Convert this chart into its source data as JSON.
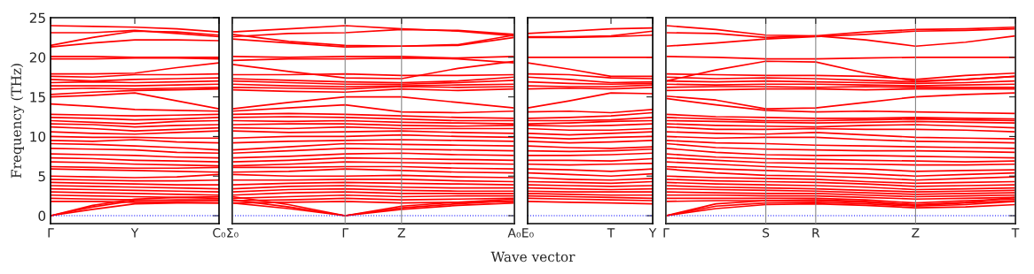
{
  "chart_data": [
    {
      "type": "line",
      "ylabel": "Frequency (THz)",
      "categories": [
        "Γ",
        null,
        "Y",
        null,
        "C₀"
      ],
      "ylim": [
        -1,
        25
      ],
      "yticks": [
        0,
        5,
        10,
        15,
        20,
        25
      ],
      "line_style": "solid",
      "ref_lines": [
        {
          "axis": "y",
          "value": 0,
          "color": "#0000ff",
          "line_style": "dotted"
        }
      ],
      "series": [
        {
          "color": "#ff0000",
          "values": [
            24.0,
            23.9,
            23.8,
            23.6,
            23.2
          ]
        },
        {
          "color": "#ff0000",
          "values": [
            23.1,
            23.1,
            23.4,
            23.0,
            22.6
          ]
        },
        {
          "color": "#ff0000",
          "values": [
            21.5,
            22.5,
            23.3,
            23.2,
            22.8
          ]
        },
        {
          "color": "#ff0000",
          "values": [
            21.3,
            21.8,
            22.2,
            22.2,
            22.1
          ]
        },
        {
          "color": "#ff0000",
          "values": [
            20.1,
            20.1,
            20.0,
            20.0,
            20.0
          ]
        },
        {
          "color": "#ff0000",
          "values": [
            19.8,
            19.8,
            19.9,
            19.9,
            19.8
          ]
        },
        {
          "color": "#ff0000",
          "values": [
            17.9,
            17.9,
            18.0,
            18.7,
            19.3
          ]
        },
        {
          "color": "#ff0000",
          "values": [
            17.6,
            17.5,
            17.8,
            17.8,
            17.9
          ]
        },
        {
          "color": "#ff0000",
          "values": [
            17.2,
            17.0,
            17.2,
            17.3,
            17.4
          ]
        },
        {
          "color": "#ff0000",
          "values": [
            16.8,
            16.9,
            16.8,
            16.9,
            17.0
          ]
        },
        {
          "color": "#ff0000",
          "values": [
            16.4,
            16.4,
            16.4,
            16.5,
            16.6
          ]
        },
        {
          "color": "#ff0000",
          "values": [
            16.0,
            16.1,
            16.0,
            16.1,
            16.2
          ]
        },
        {
          "color": "#ff0000",
          "values": [
            15.3,
            15.6,
            15.8,
            15.9,
            16.0
          ]
        },
        {
          "color": "#ff0000",
          "values": [
            15.0,
            15.2,
            15.5,
            14.5,
            13.5
          ]
        },
        {
          "color": "#ff0000",
          "values": [
            14.1,
            13.8,
            13.4,
            13.3,
            13.2
          ]
        },
        {
          "color": "#ff0000",
          "values": [
            12.8,
            12.7,
            12.6,
            12.7,
            12.8
          ]
        },
        {
          "color": "#ff0000",
          "values": [
            12.4,
            12.3,
            12.1,
            12.2,
            12.4
          ]
        },
        {
          "color": "#ff0000",
          "values": [
            12.0,
            11.8,
            11.6,
            11.9,
            12.0
          ]
        },
        {
          "color": "#ff0000",
          "values": [
            11.6,
            11.5,
            11.2,
            11.4,
            11.5
          ]
        },
        {
          "color": "#ff0000",
          "values": [
            11.2,
            11.0,
            10.7,
            10.9,
            11.1
          ]
        },
        {
          "color": "#ff0000",
          "values": [
            10.6,
            10.4,
            10.3,
            10.5,
            10.7
          ]
        },
        {
          "color": "#ff0000",
          "values": [
            10.0,
            9.9,
            9.9,
            9.8,
            9.8
          ]
        },
        {
          "color": "#ff0000",
          "values": [
            9.5,
            9.4,
            9.6,
            9.3,
            9.2
          ]
        },
        {
          "color": "#ff0000",
          "values": [
            9.1,
            9.0,
            8.8,
            8.6,
            8.3
          ]
        },
        {
          "color": "#ff0000",
          "values": [
            8.5,
            8.4,
            8.3,
            8.0,
            7.9
          ]
        },
        {
          "color": "#ff0000",
          "values": [
            7.8,
            7.7,
            7.6,
            7.4,
            7.3
          ]
        },
        {
          "color": "#ff0000",
          "values": [
            7.3,
            7.2,
            7.0,
            6.9,
            6.8
          ]
        },
        {
          "color": "#ff0000",
          "values": [
            6.8,
            6.7,
            6.5,
            6.4,
            6.3
          ]
        },
        {
          "color": "#ff0000",
          "values": [
            6.2,
            6.1,
            6.0,
            6.0,
            6.1
          ]
        },
        {
          "color": "#ff0000",
          "values": [
            5.9,
            5.8,
            5.7,
            5.6,
            5.5
          ]
        },
        {
          "color": "#ff0000",
          "values": [
            5.0,
            4.9,
            4.8,
            4.9,
            5.2
          ]
        },
        {
          "color": "#ff0000",
          "values": [
            4.6,
            4.5,
            4.4,
            4.4,
            4.5
          ]
        },
        {
          "color": "#ff0000",
          "values": [
            4.2,
            4.1,
            4.0,
            3.9,
            3.9
          ]
        },
        {
          "color": "#ff0000",
          "values": [
            3.8,
            3.7,
            3.6,
            3.5,
            3.4
          ]
        },
        {
          "color": "#ff0000",
          "values": [
            3.4,
            3.3,
            3.2,
            3.1,
            3.0
          ]
        },
        {
          "color": "#ff0000",
          "values": [
            3.0,
            2.9,
            2.8,
            2.7,
            2.6
          ]
        },
        {
          "color": "#ff0000",
          "values": [
            2.6,
            2.5,
            2.4,
            2.3,
            2.2
          ]
        },
        {
          "color": "#ff0000",
          "values": [
            2.2,
            2.1,
            2.0,
            1.9,
            1.9
          ]
        },
        {
          "color": "#ff0000",
          "values": [
            1.8,
            1.8,
            1.7,
            1.7,
            1.6
          ]
        },
        {
          "color": "#ff0000",
          "values": [
            0,
            0.8,
            1.5,
            1.6,
            1.6
          ]
        },
        {
          "color": "#ff0000",
          "values": [
            0,
            1.1,
            1.9,
            2.0,
            2.0
          ]
        },
        {
          "color": "#ff0000",
          "values": [
            0,
            1.3,
            2.1,
            2.3,
            2.4
          ]
        }
      ]
    },
    {
      "type": "line",
      "categories": [
        "Σ₀",
        null,
        "Γ",
        "Z",
        null,
        "A₀"
      ],
      "ylim": [
        -1,
        25
      ],
      "yticks": [
        0,
        5,
        10,
        15,
        20,
        25
      ],
      "tick_labels": "x",
      "grid": "x",
      "line_style": "solid",
      "ref_lines": [
        {
          "axis": "y",
          "value": 0,
          "color": "#0000ff",
          "line_style": "dotted"
        }
      ],
      "series": [
        {
          "color": "#ff0000",
          "values": [
            23.2,
            23.6,
            24.0,
            23.6,
            23.3,
            22.7
          ]
        },
        {
          "color": "#ff0000",
          "values": [
            22.6,
            23.0,
            23.1,
            23.5,
            23.4,
            22.9
          ]
        },
        {
          "color": "#ff0000",
          "values": [
            22.9,
            22.0,
            21.5,
            21.4,
            21.6,
            22.8
          ]
        },
        {
          "color": "#ff0000",
          "values": [
            22.3,
            21.8,
            21.3,
            21.4,
            21.5,
            22.5
          ]
        },
        {
          "color": "#ff0000",
          "values": [
            20.1,
            20.0,
            20.1,
            20.1,
            19.9,
            20.1
          ]
        },
        {
          "color": "#ff0000",
          "values": [
            19.6,
            19.8,
            19.8,
            19.9,
            19.8,
            19.3
          ]
        },
        {
          "color": "#ff0000",
          "values": [
            19.1,
            18.2,
            17.4,
            17.3,
            18.6,
            19.5
          ]
        },
        {
          "color": "#ff0000",
          "values": [
            17.8,
            17.8,
            17.9,
            17.7,
            17.7,
            17.8
          ]
        },
        {
          "color": "#ff0000",
          "values": [
            17.3,
            17.1,
            16.9,
            16.8,
            17.0,
            17.5
          ]
        },
        {
          "color": "#ff0000",
          "values": [
            17.0,
            16.8,
            16.6,
            16.6,
            16.8,
            17.1
          ]
        },
        {
          "color": "#ff0000",
          "values": [
            16.6,
            16.4,
            16.3,
            16.4,
            16.5,
            16.6
          ]
        },
        {
          "color": "#ff0000",
          "values": [
            16.2,
            16.1,
            16.0,
            16.3,
            16.2,
            16.3
          ]
        },
        {
          "color": "#ff0000",
          "values": [
            15.9,
            15.7,
            15.6,
            16.0,
            15.8,
            16.0
          ]
        },
        {
          "color": "#ff0000",
          "values": [
            13.5,
            14.3,
            15.0,
            15.0,
            14.3,
            13.6
          ]
        },
        {
          "color": "#ff0000",
          "values": [
            13.2,
            13.6,
            14.0,
            13.1,
            13.0,
            13.2
          ]
        },
        {
          "color": "#ff0000",
          "values": [
            12.8,
            12.9,
            12.8,
            12.6,
            12.4,
            12.3
          ]
        },
        {
          "color": "#ff0000",
          "values": [
            12.4,
            12.5,
            12.4,
            12.2,
            12.0,
            12.0
          ]
        },
        {
          "color": "#ff0000",
          "values": [
            12.0,
            11.9,
            12.0,
            11.8,
            11.7,
            11.6
          ]
        },
        {
          "color": "#ff0000",
          "values": [
            11.5,
            11.6,
            11.6,
            11.4,
            11.3,
            11.4
          ]
        },
        {
          "color": "#ff0000",
          "values": [
            11.1,
            11.0,
            11.2,
            11.0,
            11.0,
            11.0
          ]
        },
        {
          "color": "#ff0000",
          "values": [
            10.7,
            10.5,
            10.6,
            10.7,
            10.5,
            10.4
          ]
        },
        {
          "color": "#ff0000",
          "values": [
            9.8,
            10.0,
            10.0,
            10.2,
            10.0,
            9.9
          ]
        },
        {
          "color": "#ff0000",
          "values": [
            9.2,
            9.4,
            9.5,
            9.6,
            9.5,
            9.4
          ]
        },
        {
          "color": "#ff0000",
          "values": [
            8.3,
            8.7,
            9.1,
            9.0,
            8.9,
            8.8
          ]
        },
        {
          "color": "#ff0000",
          "values": [
            7.9,
            8.2,
            8.5,
            8.4,
            8.3,
            8.2
          ]
        },
        {
          "color": "#ff0000",
          "values": [
            7.3,
            7.5,
            7.8,
            7.9,
            7.7,
            7.6
          ]
        },
        {
          "color": "#ff0000",
          "values": [
            6.8,
            7.0,
            7.3,
            7.2,
            7.1,
            7.0
          ]
        },
        {
          "color": "#ff0000",
          "values": [
            6.3,
            6.5,
            6.8,
            6.7,
            6.6,
            6.5
          ]
        },
        {
          "color": "#ff0000",
          "values": [
            6.1,
            6.1,
            6.2,
            6.2,
            6.0,
            5.9
          ]
        },
        {
          "color": "#ff0000",
          "values": [
            5.5,
            5.6,
            5.9,
            5.7,
            5.5,
            5.4
          ]
        },
        {
          "color": "#ff0000",
          "values": [
            5.2,
            5.0,
            5.0,
            5.1,
            4.9,
            4.8
          ]
        },
        {
          "color": "#ff0000",
          "values": [
            4.5,
            4.5,
            4.6,
            4.6,
            4.4,
            4.3
          ]
        },
        {
          "color": "#ff0000",
          "values": [
            3.9,
            4.1,
            4.2,
            4.1,
            4.0,
            3.9
          ]
        },
        {
          "color": "#ff0000",
          "values": [
            3.4,
            3.7,
            3.8,
            3.6,
            3.5,
            3.5
          ]
        },
        {
          "color": "#ff0000",
          "values": [
            3.0,
            3.3,
            3.4,
            3.2,
            3.1,
            3.1
          ]
        },
        {
          "color": "#ff0000",
          "values": [
            2.6,
            2.9,
            3.0,
            2.8,
            2.8,
            2.8
          ]
        },
        {
          "color": "#ff0000",
          "values": [
            2.2,
            2.4,
            2.6,
            2.4,
            2.5,
            2.5
          ]
        },
        {
          "color": "#ff0000",
          "values": [
            1.9,
            2.0,
            2.2,
            2.0,
            2.1,
            2.2
          ]
        },
        {
          "color": "#ff0000",
          "values": [
            1.6,
            1.7,
            1.8,
            1.6,
            1.7,
            1.8
          ]
        },
        {
          "color": "#ff0000",
          "values": [
            1.6,
            0.9,
            0,
            0.8,
            1.3,
            1.6
          ]
        },
        {
          "color": "#ff0000",
          "values": [
            2.0,
            1.1,
            0,
            1.0,
            1.5,
            1.9
          ]
        },
        {
          "color": "#ff0000",
          "values": [
            2.4,
            1.4,
            0,
            1.2,
            1.7,
            2.1
          ]
        }
      ]
    },
    {
      "type": "line",
      "xlabel": "Wave vector",
      "categories": [
        "E₀",
        null,
        "T",
        "Y"
      ],
      "ylim": [
        -1,
        25
      ],
      "yticks": [
        0,
        5,
        10,
        15,
        20,
        25
      ],
      "tick_labels": "x",
      "line_style": "solid",
      "ref_lines": [
        {
          "axis": "y",
          "value": 0,
          "color": "#0000ff",
          "line_style": "dotted"
        }
      ],
      "series": [
        {
          "color": "#ff0000",
          "values": [
            23.0,
            23.3,
            23.6,
            23.7
          ]
        },
        {
          "color": "#ff0000",
          "values": [
            22.6,
            22.6,
            22.7,
            23.3
          ]
        },
        {
          "color": "#ff0000",
          "values": [
            22.5,
            22.5,
            22.6,
            22.8
          ]
        },
        {
          "color": "#ff0000",
          "values": [
            20.0,
            20.0,
            20.0,
            20.0
          ]
        },
        {
          "color": "#ff0000",
          "values": [
            19.3,
            18.5,
            17.6,
            17.6
          ]
        },
        {
          "color": "#ff0000",
          "values": [
            17.9,
            17.8,
            17.4,
            17.3
          ]
        },
        {
          "color": "#ff0000",
          "values": [
            17.5,
            17.2,
            16.8,
            16.9
          ]
        },
        {
          "color": "#ff0000",
          "values": [
            16.9,
            16.7,
            16.6,
            16.7
          ]
        },
        {
          "color": "#ff0000",
          "values": [
            16.4,
            16.3,
            16.3,
            16.5
          ]
        },
        {
          "color": "#ff0000",
          "values": [
            16.0,
            16.1,
            16.0,
            16.2
          ]
        },
        {
          "color": "#ff0000",
          "values": [
            13.6,
            14.5,
            15.5,
            15.4
          ]
        },
        {
          "color": "#ff0000",
          "values": [
            13.1,
            13.2,
            13.0,
            13.4
          ]
        },
        {
          "color": "#ff0000",
          "values": [
            12.3,
            12.4,
            12.6,
            13.0
          ]
        },
        {
          "color": "#ff0000",
          "values": [
            12.0,
            12.0,
            12.1,
            12.4
          ]
        },
        {
          "color": "#ff0000",
          "values": [
            11.6,
            11.7,
            11.9,
            12.0
          ]
        },
        {
          "color": "#ff0000",
          "values": [
            11.4,
            11.3,
            11.4,
            11.6
          ]
        },
        {
          "color": "#ff0000",
          "values": [
            11.0,
            10.8,
            10.8,
            11.0
          ]
        },
        {
          "color": "#ff0000",
          "values": [
            10.4,
            10.2,
            10.4,
            10.6
          ]
        },
        {
          "color": "#ff0000",
          "values": [
            9.9,
            9.7,
            9.9,
            10.0
          ]
        },
        {
          "color": "#ff0000",
          "values": [
            9.4,
            9.2,
            9.3,
            9.5
          ]
        },
        {
          "color": "#ff0000",
          "values": [
            8.8,
            8.6,
            8.5,
            8.7
          ]
        },
        {
          "color": "#ff0000",
          "values": [
            8.2,
            8.1,
            8.2,
            8.4
          ]
        },
        {
          "color": "#ff0000",
          "values": [
            7.6,
            7.6,
            7.7,
            7.9
          ]
        },
        {
          "color": "#ff0000",
          "values": [
            7.0,
            7.0,
            6.9,
            7.2
          ]
        },
        {
          "color": "#ff0000",
          "values": [
            6.5,
            6.4,
            6.5,
            6.6
          ]
        },
        {
          "color": "#ff0000",
          "values": [
            5.9,
            5.8,
            5.6,
            5.9
          ]
        },
        {
          "color": "#ff0000",
          "values": [
            5.4,
            5.2,
            5.0,
            5.3
          ]
        },
        {
          "color": "#ff0000",
          "values": [
            4.8,
            4.6,
            4.5,
            4.7
          ]
        },
        {
          "color": "#ff0000",
          "values": [
            4.3,
            4.2,
            4.1,
            4.3
          ]
        },
        {
          "color": "#ff0000",
          "values": [
            3.9,
            3.8,
            3.7,
            3.8
          ]
        },
        {
          "color": "#ff0000",
          "values": [
            3.5,
            3.4,
            3.3,
            3.4
          ]
        },
        {
          "color": "#ff0000",
          "values": [
            3.1,
            3.0,
            3.0,
            3.0
          ]
        },
        {
          "color": "#ff0000",
          "values": [
            2.8,
            2.7,
            2.6,
            2.6
          ]
        },
        {
          "color": "#ff0000",
          "values": [
            2.5,
            2.4,
            2.3,
            2.2
          ]
        },
        {
          "color": "#ff0000",
          "values": [
            2.2,
            2.1,
            2.0,
            1.9
          ]
        },
        {
          "color": "#ff0000",
          "values": [
            1.8,
            1.7,
            1.6,
            1.5
          ]
        }
      ]
    },
    {
      "type": "line",
      "categories": [
        "Γ",
        null,
        "S",
        "R",
        null,
        "Z",
        null,
        "T"
      ],
      "ylim": [
        -1,
        25
      ],
      "yticks": [
        0,
        5,
        10,
        15,
        20,
        25
      ],
      "tick_labels": "x",
      "grid": "x",
      "line_style": "solid",
      "ref_lines": [
        {
          "axis": "y",
          "value": 0,
          "color": "#0000ff",
          "line_style": "dotted"
        }
      ],
      "series": [
        {
          "color": "#ff0000",
          "values": [
            24.0,
            23.5,
            22.8,
            22.7,
            23.2,
            23.5,
            23.6,
            23.8
          ]
        },
        {
          "color": "#ff0000",
          "values": [
            23.1,
            23.0,
            22.5,
            22.7,
            22.2,
            21.4,
            21.9,
            22.7
          ]
        },
        {
          "color": "#ff0000",
          "values": [
            21.4,
            21.8,
            22.3,
            22.6,
            22.9,
            23.3,
            23.4,
            23.6
          ]
        },
        {
          "color": "#ff0000",
          "values": [
            20.1,
            20.0,
            19.8,
            19.8,
            19.9,
            20.0,
            20.0,
            20.0
          ]
        },
        {
          "color": "#ff0000",
          "values": [
            17.0,
            18.4,
            19.5,
            19.4,
            18.0,
            17.0,
            17.2,
            17.6
          ]
        },
        {
          "color": "#ff0000",
          "values": [
            17.9,
            17.8,
            17.7,
            17.7,
            17.6,
            17.2,
            17.7,
            18.0
          ]
        },
        {
          "color": "#ff0000",
          "values": [
            17.5,
            17.3,
            17.4,
            17.3,
            17.1,
            16.9,
            17.2,
            17.6
          ]
        },
        {
          "color": "#ff0000",
          "values": [
            17.0,
            16.9,
            17.0,
            16.9,
            16.8,
            16.7,
            16.8,
            17.0
          ]
        },
        {
          "color": "#ff0000",
          "values": [
            16.6,
            16.5,
            16.6,
            16.6,
            16.5,
            16.4,
            16.5,
            16.6
          ]
        },
        {
          "color": "#ff0000",
          "values": [
            16.2,
            16.3,
            16.3,
            16.2,
            16.3,
            16.2,
            16.2,
            16.2
          ]
        },
        {
          "color": "#ff0000",
          "values": [
            15.8,
            15.9,
            16.0,
            16.0,
            15.9,
            16.0,
            16.0,
            16.0
          ]
        },
        {
          "color": "#ff0000",
          "values": [
            15.1,
            14.6,
            13.5,
            13.6,
            14.3,
            15.0,
            15.3,
            15.5
          ]
        },
        {
          "color": "#ff0000",
          "values": [
            14.8,
            14.0,
            13.3,
            13.1,
            13.2,
            13.1,
            13.0,
            12.9
          ]
        },
        {
          "color": "#ff0000",
          "values": [
            12.8,
            12.5,
            12.4,
            12.3,
            12.3,
            12.4,
            12.3,
            12.2
          ]
        },
        {
          "color": "#ff0000",
          "values": [
            12.4,
            12.2,
            12.0,
            12.0,
            12.1,
            12.2,
            12.1,
            12.0
          ]
        },
        {
          "color": "#ff0000",
          "values": [
            12.0,
            11.9,
            11.8,
            11.7,
            11.8,
            11.9,
            11.8,
            11.7
          ]
        },
        {
          "color": "#ff0000",
          "values": [
            11.6,
            11.4,
            11.3,
            11.2,
            11.4,
            11.5,
            11.3,
            11.1
          ]
        },
        {
          "color": "#ff0000",
          "values": [
            11.2,
            10.9,
            10.9,
            11.0,
            10.9,
            10.9,
            10.8,
            10.6
          ]
        },
        {
          "color": "#ff0000",
          "values": [
            10.6,
            10.4,
            10.3,
            10.5,
            10.2,
            9.9,
            9.8,
            9.7
          ]
        },
        {
          "color": "#ff0000",
          "values": [
            10.0,
            9.8,
            9.9,
            9.9,
            9.6,
            9.4,
            9.3,
            9.2
          ]
        },
        {
          "color": "#ff0000",
          "values": [
            9.5,
            9.2,
            9.1,
            8.9,
            8.8,
            8.7,
            8.6,
            8.5
          ]
        },
        {
          "color": "#ff0000",
          "values": [
            9.1,
            8.6,
            8.4,
            8.3,
            8.2,
            8.2,
            8.1,
            8.0
          ]
        },
        {
          "color": "#ff0000",
          "values": [
            8.5,
            8.0,
            7.7,
            7.6,
            7.6,
            7.5,
            7.4,
            7.3
          ]
        },
        {
          "color": "#ff0000",
          "values": [
            7.8,
            7.4,
            7.2,
            7.1,
            7.0,
            6.9,
            6.8,
            6.9
          ]
        },
        {
          "color": "#ff0000",
          "values": [
            7.3,
            7.0,
            6.7,
            6.6,
            6.5,
            6.4,
            6.4,
            6.5
          ]
        },
        {
          "color": "#ff0000",
          "values": [
            6.8,
            6.5,
            6.2,
            6.0,
            5.9,
            5.6,
            5.7,
            5.8
          ]
        },
        {
          "color": "#ff0000",
          "values": [
            6.2,
            5.9,
            5.7,
            5.5,
            5.3,
            5.0,
            5.2,
            5.4
          ]
        },
        {
          "color": "#ff0000",
          "values": [
            5.9,
            5.4,
            5.1,
            5.0,
            4.8,
            4.5,
            4.7,
            4.9
          ]
        },
        {
          "color": "#ff0000",
          "values": [
            5.0,
            4.8,
            4.7,
            4.6,
            4.3,
            4.1,
            4.2,
            4.3
          ]
        },
        {
          "color": "#ff0000",
          "values": [
            4.6,
            4.4,
            4.3,
            4.2,
            4.0,
            3.7,
            3.8,
            3.9
          ]
        },
        {
          "color": "#ff0000",
          "values": [
            4.2,
            4.0,
            3.9,
            3.8,
            3.6,
            3.3,
            3.4,
            3.5
          ]
        },
        {
          "color": "#ff0000",
          "values": [
            3.8,
            3.6,
            3.5,
            3.4,
            3.2,
            3.0,
            3.1,
            3.2
          ]
        },
        {
          "color": "#ff0000",
          "values": [
            3.4,
            3.3,
            3.2,
            3.1,
            2.9,
            2.7,
            2.8,
            2.9
          ]
        },
        {
          "color": "#ff0000",
          "values": [
            3.0,
            2.9,
            2.8,
            2.8,
            2.6,
            2.4,
            2.5,
            2.6
          ]
        },
        {
          "color": "#ff0000",
          "values": [
            2.6,
            2.6,
            2.5,
            2.5,
            2.3,
            2.1,
            2.2,
            2.3
          ]
        },
        {
          "color": "#ff0000",
          "values": [
            2.2,
            2.2,
            2.2,
            2.2,
            2.0,
            1.6,
            1.9,
            2.1
          ]
        },
        {
          "color": "#ff0000",
          "values": [
            1.8,
            1.9,
            1.9,
            1.9,
            1.7,
            1.3,
            1.6,
            1.9
          ]
        },
        {
          "color": "#ff0000",
          "values": [
            0,
            0.9,
            1.4,
            1.5,
            1.3,
            1.0,
            1.1,
            1.4
          ]
        },
        {
          "color": "#ff0000",
          "values": [
            0,
            1.2,
            1.6,
            1.7,
            1.5,
            1.2,
            1.4,
            1.8
          ]
        },
        {
          "color": "#ff0000",
          "values": [
            0,
            1.5,
            1.9,
            2.0,
            1.8,
            1.4,
            1.7,
            2.3
          ]
        }
      ]
    }
  ]
}
